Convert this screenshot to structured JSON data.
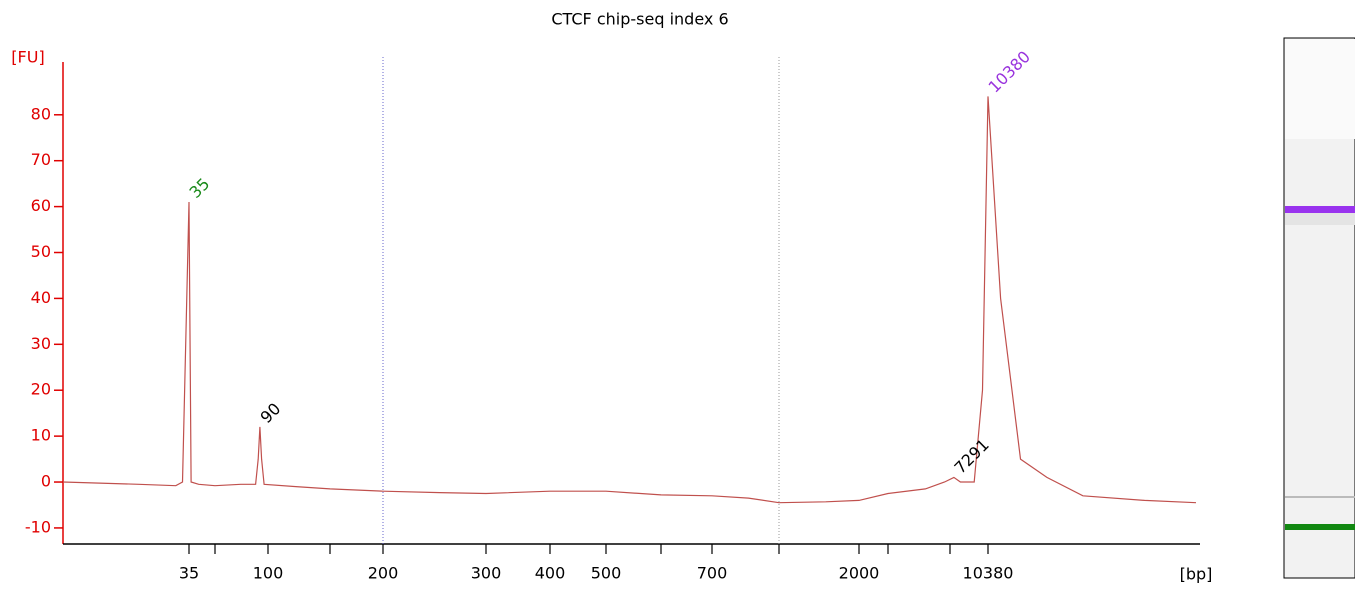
{
  "chart_data": {
    "type": "line",
    "title": "CTCF chip-seq index 6",
    "y_label": "[FU]",
    "x_label": "[bp]",
    "ylim": [
      -13.5,
      91.5
    ],
    "yticks": [
      -10,
      0,
      10,
      20,
      30,
      40,
      50,
      60,
      70,
      80
    ],
    "xlim": [
      20,
      20000
    ],
    "xticks": [
      35,
      {
        "value": 50,
        "label": null
      },
      100,
      {
        "value": 150,
        "label": null
      },
      200,
      300,
      400,
      500,
      {
        "value": 600,
        "label": null
      },
      700,
      {
        "value": 1000,
        "label": null
      },
      2000,
      {
        "value": 3000,
        "label": null
      },
      {
        "value": 7000,
        "label": null
      },
      10380
    ],
    "markers": [
      {
        "x": 200,
        "color": "#6666cc"
      },
      {
        "x": 1000,
        "color": "#999999"
      }
    ],
    "series": [
      {
        "color": "#c0504d",
        "x": [
          20,
          28,
          33,
          34,
          35,
          36,
          40,
          50,
          70,
          85,
          88,
          90,
          92,
          95,
          120,
          150,
          200,
          250,
          300,
          400,
          500,
          600,
          700,
          850,
          1000,
          1500,
          2000,
          3000,
          5000,
          6500,
          7291,
          7800,
          9000,
          9800,
          10380,
          10800,
          11500,
          12500,
          14000,
          17000,
          20000
        ],
        "values": [
          0,
          -0.5,
          -0.8,
          0,
          61,
          0,
          -0.5,
          -0.8,
          -0.5,
          -0.5,
          5,
          12,
          5,
          -0.5,
          -1,
          -1.5,
          -2,
          -2.3,
          -2.5,
          -2,
          -2,
          -2.8,
          -3,
          -3.5,
          -4.5,
          -4.3,
          -4,
          -2.5,
          -1.5,
          0,
          1,
          0,
          0,
          20,
          84,
          40,
          5,
          1,
          -3,
          -4,
          -4.5
        ]
      }
    ],
    "peaks": [
      {
        "label": "35",
        "x": 35,
        "y": 61,
        "color": "#1a8a1a"
      },
      {
        "label": "90",
        "x": 90,
        "y": 12,
        "color": "#000000"
      },
      {
        "label": "7291",
        "x": 7291,
        "y": 1,
        "color": "#000000"
      },
      {
        "label": "10380",
        "x": 10380,
        "y": 84,
        "color": "#9933dd"
      }
    ]
  }
}
